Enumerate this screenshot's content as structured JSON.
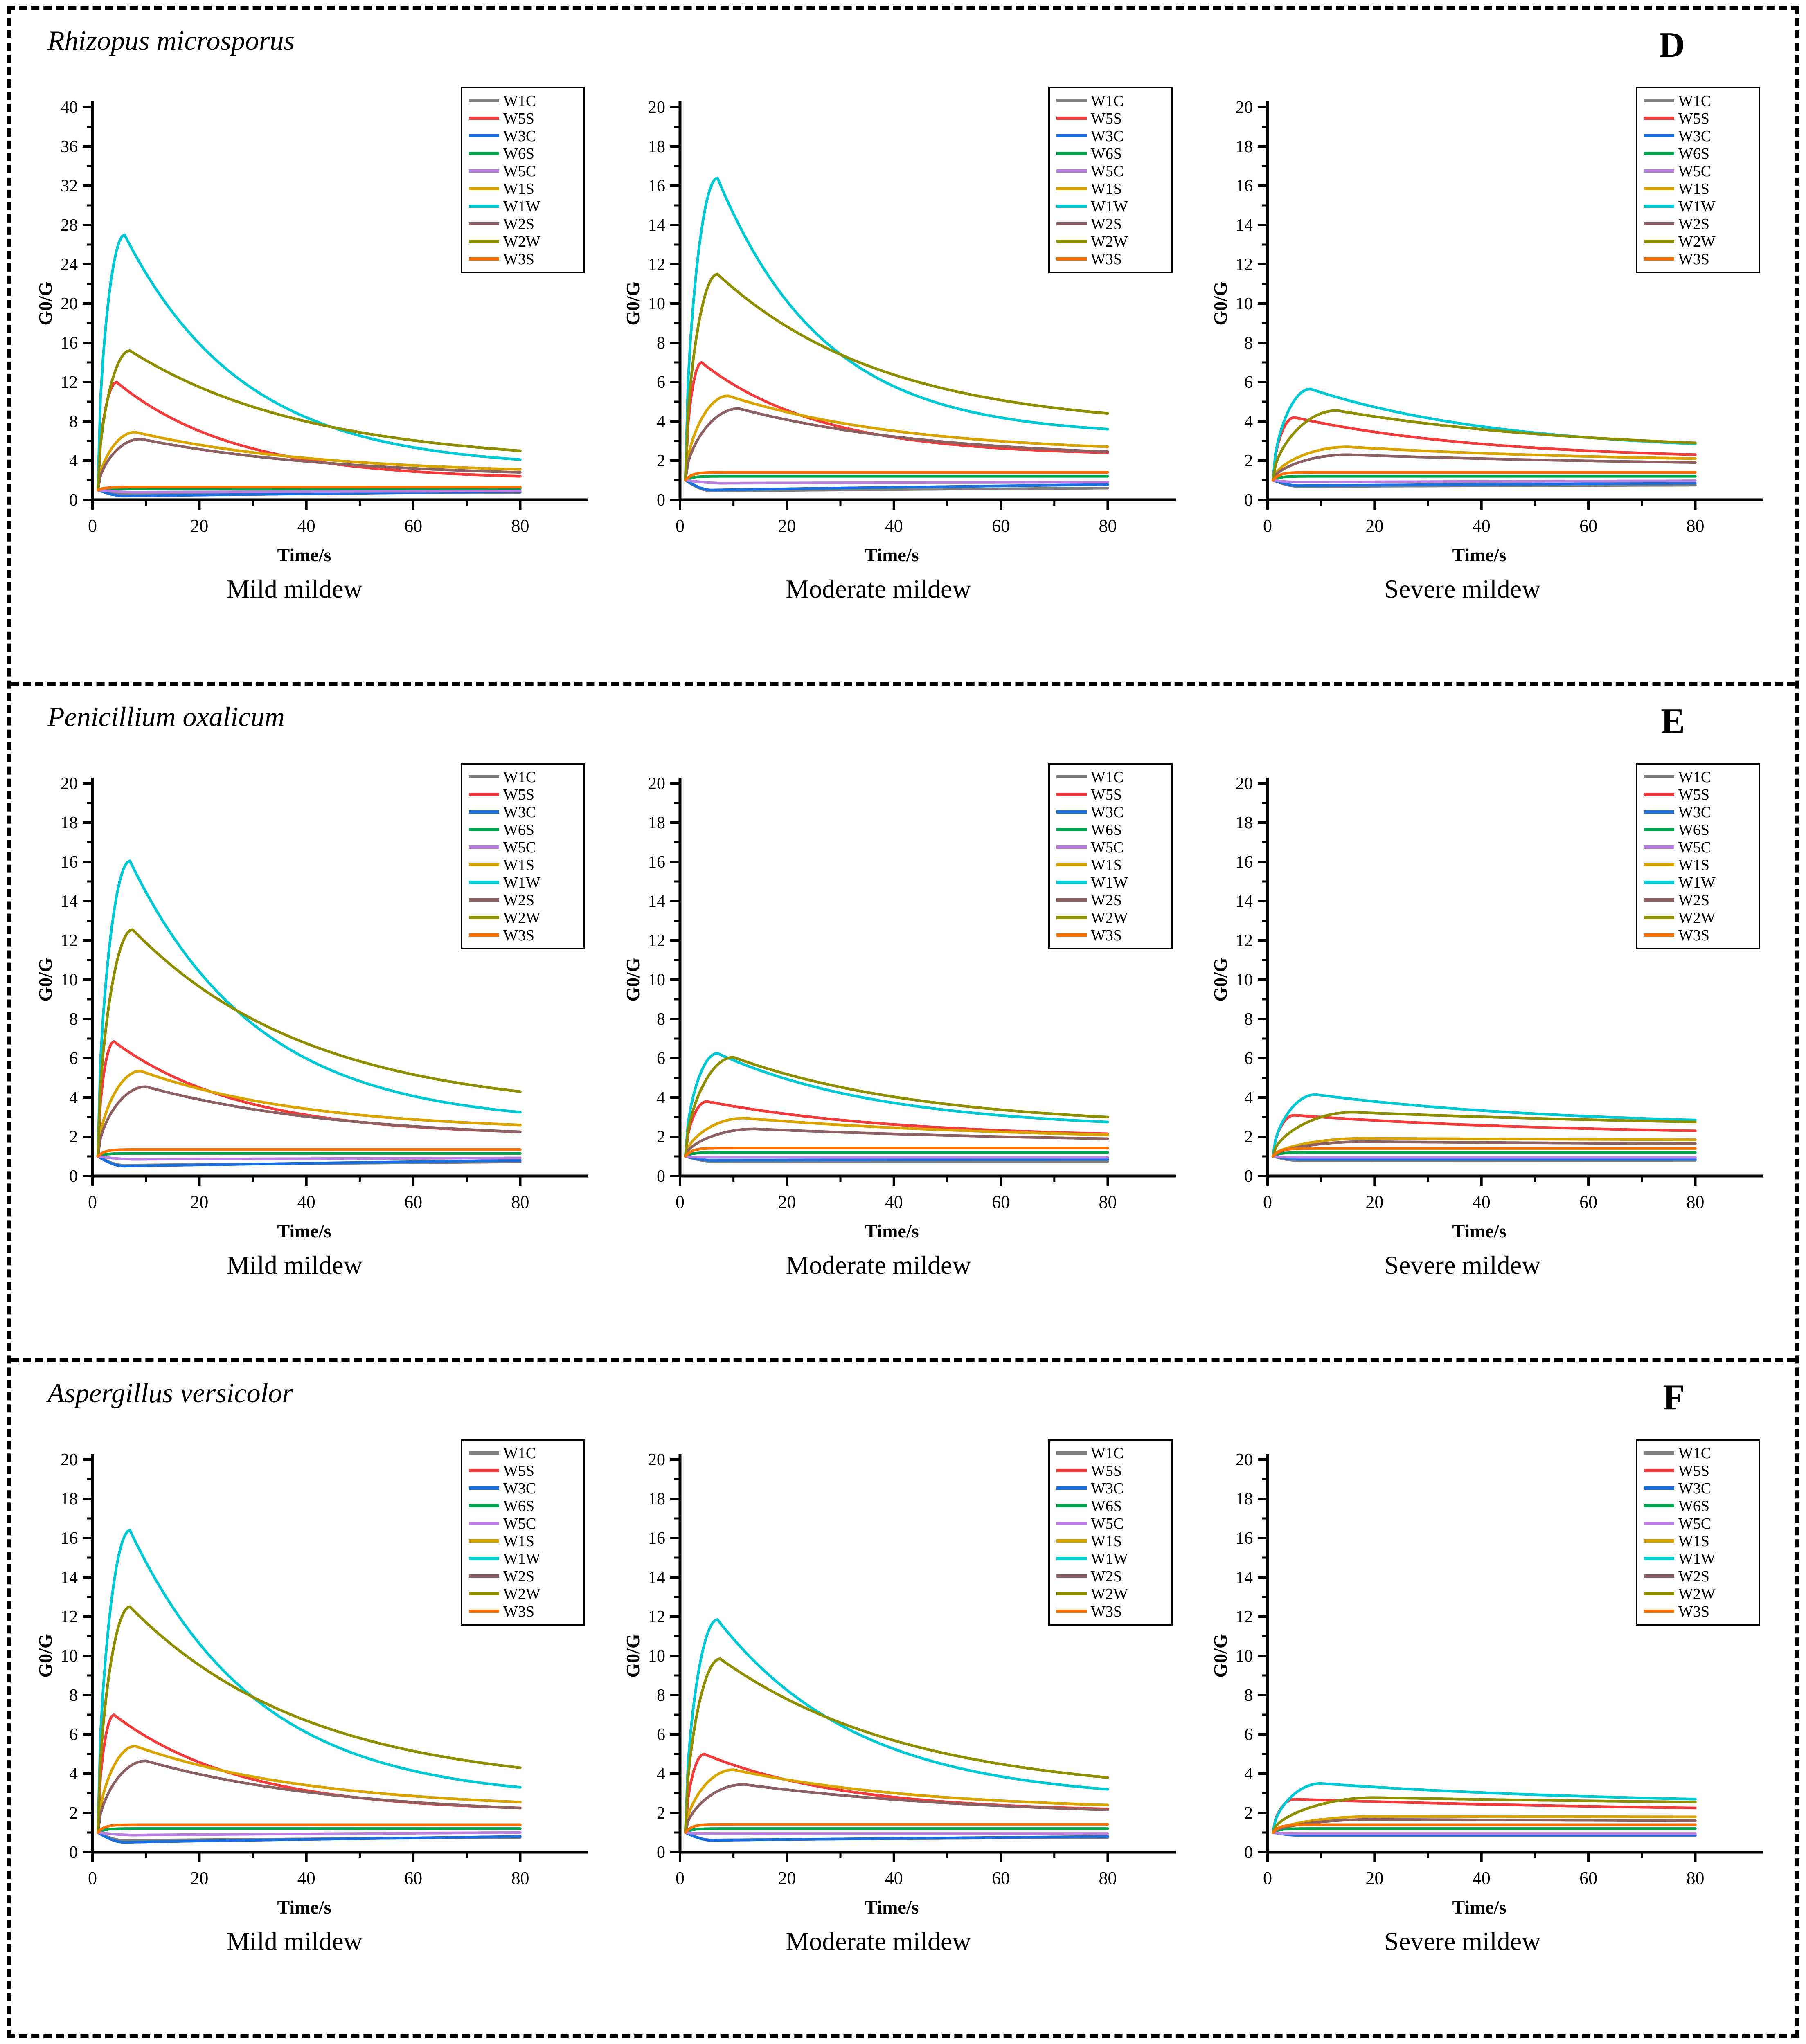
{
  "figure": {
    "rows": [
      {
        "panel": "D",
        "species": "Rhizopus microsporus",
        "captions": [
          "Mild mildew",
          "Moderate mildew",
          "Severe mildew"
        ]
      },
      {
        "panel": "E",
        "species": "Penicillium oxalicum",
        "captions": [
          "Mild mildew",
          "Moderate mildew",
          "Severe mildew"
        ]
      },
      {
        "panel": "F",
        "species": "Aspergillus versicolor",
        "captions": [
          "Mild mildew",
          "Moderate mildew",
          "Severe mildew"
        ]
      }
    ]
  },
  "axis": {
    "xlabel": "Time/s",
    "ylabel": "G0/G",
    "xticks": [
      0,
      20,
      40,
      60,
      80
    ],
    "xminor": [
      10,
      30,
      50,
      70
    ],
    "xmax": 88,
    "tstart": 1,
    "tend": 80
  },
  "legend_order": [
    "W1C",
    "W5S",
    "W3C",
    "W6S",
    "W5C",
    "W1S",
    "W1W",
    "W2S",
    "W2W",
    "W3S"
  ],
  "colors": {
    "W1C": "#7F7F7F",
    "W5S": "#F23B3B",
    "W3C": "#1A6FDF",
    "W6S": "#00A550",
    "W5C": "#B97FE0",
    "W1S": "#D9A300",
    "W1W": "#00C9D4",
    "W2S": "#8D6161",
    "W2W": "#8E8E00",
    "W3S": "#F97100",
    "axis": "#000000"
  },
  "chart_data": [
    {
      "type": "line",
      "row": 0,
      "col": 0,
      "condition": "Mild mildew",
      "ymax": 40,
      "ystep": 4,
      "series": [
        {
          "key": "W1C",
          "type": "dip",
          "dip": 0.62,
          "td": 6,
          "end": 0.75
        },
        {
          "key": "W5S",
          "type": "peak",
          "peak": 12.0,
          "tp": 4.5,
          "end": 2.4,
          "k": 0.045
        },
        {
          "key": "W3C",
          "type": "dip",
          "dip": 0.38,
          "td": 6,
          "end": 0.85
        },
        {
          "key": "W6S",
          "type": "flat",
          "level": 1.12
        },
        {
          "key": "W5C",
          "type": "dip",
          "dip": 0.78,
          "td": 8,
          "end": 0.9
        },
        {
          "key": "W1S",
          "type": "peak",
          "peak": 6.9,
          "tp": 8,
          "end": 3.1,
          "k": 0.03
        },
        {
          "key": "W1W",
          "type": "peak",
          "peak": 27.0,
          "tp": 6,
          "end": 4.1,
          "k": 0.045
        },
        {
          "key": "W2S",
          "type": "peak",
          "peak": 6.2,
          "tp": 9,
          "end": 2.8,
          "k": 0.028
        },
        {
          "key": "W2W",
          "type": "peak",
          "peak": 15.2,
          "tp": 7,
          "end": 5.0,
          "k": 0.03
        },
        {
          "key": "W3S",
          "type": "flat",
          "level": 1.3
        }
      ]
    },
    {
      "type": "line",
      "row": 0,
      "col": 1,
      "condition": "Moderate mildew",
      "ymax": 20,
      "ystep": 2,
      "series": [
        {
          "key": "W1C",
          "type": "dip",
          "dip": 0.45,
          "td": 6,
          "end": 0.6
        },
        {
          "key": "W5S",
          "type": "peak",
          "peak": 7.0,
          "tp": 4,
          "end": 2.4,
          "k": 0.045
        },
        {
          "key": "W3C",
          "type": "dip",
          "dip": 0.5,
          "td": 6,
          "end": 0.78
        },
        {
          "key": "W6S",
          "type": "flat",
          "level": 1.2
        },
        {
          "key": "W5C",
          "type": "dip",
          "dip": 0.85,
          "td": 8,
          "end": 0.9
        },
        {
          "key": "W1S",
          "type": "peak",
          "peak": 5.3,
          "tp": 9,
          "end": 2.7,
          "k": 0.03
        },
        {
          "key": "W1W",
          "type": "peak",
          "peak": 16.4,
          "tp": 7,
          "end": 3.6,
          "k": 0.05
        },
        {
          "key": "W2S",
          "type": "peak",
          "peak": 4.65,
          "tp": 11,
          "end": 2.45,
          "k": 0.028
        },
        {
          "key": "W2W",
          "type": "peak",
          "peak": 11.5,
          "tp": 7,
          "end": 4.4,
          "k": 0.032
        },
        {
          "key": "W3S",
          "type": "flat",
          "level": 1.4
        }
      ]
    },
    {
      "type": "line",
      "row": 0,
      "col": 2,
      "condition": "Severe mildew",
      "ymax": 20,
      "ystep": 2,
      "series": [
        {
          "key": "W1C",
          "type": "dip",
          "dip": 0.68,
          "td": 6,
          "end": 0.75
        },
        {
          "key": "W5S",
          "type": "peak",
          "peak": 4.2,
          "tp": 5,
          "end": 2.3,
          "k": 0.028
        },
        {
          "key": "W3C",
          "type": "dip",
          "dip": 0.72,
          "td": 6,
          "end": 0.85
        },
        {
          "key": "W6S",
          "type": "flat",
          "level": 1.2
        },
        {
          "key": "W5C",
          "type": "dip",
          "dip": 0.9,
          "td": 6,
          "end": 0.97
        },
        {
          "key": "W1S",
          "type": "peak",
          "peak": 2.7,
          "tp": 15,
          "end": 2.1,
          "k": 0.02
        },
        {
          "key": "W1W",
          "type": "peak",
          "peak": 5.65,
          "tp": 8,
          "end": 2.85,
          "k": 0.028
        },
        {
          "key": "W2S",
          "type": "peak",
          "peak": 2.3,
          "tp": 15,
          "end": 1.9,
          "k": 0.015
        },
        {
          "key": "W2W",
          "type": "peak",
          "peak": 4.55,
          "tp": 13,
          "end": 2.9,
          "k": 0.022
        },
        {
          "key": "W3S",
          "type": "flat",
          "level": 1.4
        }
      ]
    },
    {
      "type": "line",
      "row": 1,
      "col": 0,
      "condition": "Mild mildew",
      "ymax": 20,
      "ystep": 2,
      "series": [
        {
          "key": "W1C",
          "type": "dip",
          "dip": 0.55,
          "td": 6,
          "end": 0.72
        },
        {
          "key": "W5S",
          "type": "peak",
          "peak": 6.85,
          "tp": 4,
          "end": 2.25,
          "k": 0.042
        },
        {
          "key": "W3C",
          "type": "dip",
          "dip": 0.5,
          "td": 6,
          "end": 0.8
        },
        {
          "key": "W6S",
          "type": "flat",
          "level": 1.15
        },
        {
          "key": "W5C",
          "type": "dip",
          "dip": 0.85,
          "td": 8,
          "end": 0.92
        },
        {
          "key": "W1S",
          "type": "peak",
          "peak": 5.35,
          "tp": 9,
          "end": 2.6,
          "k": 0.032
        },
        {
          "key": "W1W",
          "type": "peak",
          "peak": 16.05,
          "tp": 7,
          "end": 3.25,
          "k": 0.042
        },
        {
          "key": "W2S",
          "type": "peak",
          "peak": 4.55,
          "tp": 10,
          "end": 2.25,
          "k": 0.028
        },
        {
          "key": "W2W",
          "type": "peak",
          "peak": 12.55,
          "tp": 7.5,
          "end": 4.3,
          "k": 0.03
        },
        {
          "key": "W3S",
          "type": "flat",
          "level": 1.35
        }
      ]
    },
    {
      "type": "line",
      "row": 1,
      "col": 1,
      "condition": "Moderate mildew",
      "ymax": 20,
      "ystep": 2,
      "series": [
        {
          "key": "W1C",
          "type": "dip",
          "dip": 0.75,
          "td": 6,
          "end": 0.75
        },
        {
          "key": "W5S",
          "type": "peak",
          "peak": 3.8,
          "tp": 5,
          "end": 2.15,
          "k": 0.028
        },
        {
          "key": "W3C",
          "type": "dip",
          "dip": 0.8,
          "td": 6,
          "end": 0.85
        },
        {
          "key": "W6S",
          "type": "flat",
          "level": 1.2
        },
        {
          "key": "W5C",
          "type": "flat",
          "level": 0.95
        },
        {
          "key": "W1S",
          "type": "peak",
          "peak": 2.95,
          "tp": 12,
          "end": 2.1,
          "k": 0.02
        },
        {
          "key": "W1W",
          "type": "peak",
          "peak": 6.25,
          "tp": 7,
          "end": 2.75,
          "k": 0.032
        },
        {
          "key": "W2S",
          "type": "peak",
          "peak": 2.4,
          "tp": 14,
          "end": 1.9,
          "k": 0.015
        },
        {
          "key": "W2W",
          "type": "peak",
          "peak": 6.05,
          "tp": 10,
          "end": 3.0,
          "k": 0.028
        },
        {
          "key": "W3S",
          "type": "flat",
          "level": 1.42
        }
      ]
    },
    {
      "type": "line",
      "row": 1,
      "col": 2,
      "condition": "Severe mildew",
      "ymax": 20,
      "ystep": 2,
      "series": [
        {
          "key": "W1C",
          "type": "dip",
          "dip": 0.78,
          "td": 6,
          "end": 0.8
        },
        {
          "key": "W5S",
          "type": "peak",
          "peak": 3.1,
          "tp": 5,
          "end": 2.3,
          "k": 0.02
        },
        {
          "key": "W3C",
          "type": "dip",
          "dip": 0.85,
          "td": 6,
          "end": 0.85
        },
        {
          "key": "W6S",
          "type": "flat",
          "level": 1.2
        },
        {
          "key": "W5C",
          "type": "flat",
          "level": 0.95
        },
        {
          "key": "W1S",
          "type": "peak",
          "peak": 1.92,
          "tp": 18,
          "end": 1.85,
          "k": 0.01
        },
        {
          "key": "W1W",
          "type": "peak",
          "peak": 4.15,
          "tp": 9,
          "end": 2.85,
          "k": 0.022
        },
        {
          "key": "W2S",
          "type": "peak",
          "peak": 1.75,
          "tp": 18,
          "end": 1.65,
          "k": 0.01
        },
        {
          "key": "W2W",
          "type": "peak",
          "peak": 3.25,
          "tp": 16,
          "end": 2.75,
          "k": 0.012
        },
        {
          "key": "W3S",
          "type": "flat",
          "level": 1.4
        }
      ]
    },
    {
      "type": "line",
      "row": 2,
      "col": 0,
      "condition": "Mild mildew",
      "ymax": 20,
      "ystep": 2,
      "series": [
        {
          "key": "W1C",
          "type": "dip",
          "dip": 0.6,
          "td": 6,
          "end": 0.75
        },
        {
          "key": "W5S",
          "type": "peak",
          "peak": 7.0,
          "tp": 4,
          "end": 2.25,
          "k": 0.042
        },
        {
          "key": "W3C",
          "type": "dip",
          "dip": 0.5,
          "td": 6,
          "end": 0.8
        },
        {
          "key": "W6S",
          "type": "flat",
          "level": 1.2
        },
        {
          "key": "W5C",
          "type": "dip",
          "dip": 0.87,
          "td": 8,
          "end": 1.0
        },
        {
          "key": "W1S",
          "type": "peak",
          "peak": 5.4,
          "tp": 8,
          "end": 2.55,
          "k": 0.03
        },
        {
          "key": "W1W",
          "type": "peak",
          "peak": 16.4,
          "tp": 7,
          "end": 3.3,
          "k": 0.042
        },
        {
          "key": "W2S",
          "type": "peak",
          "peak": 4.65,
          "tp": 10,
          "end": 2.25,
          "k": 0.028
        },
        {
          "key": "W2W",
          "type": "peak",
          "peak": 12.5,
          "tp": 7,
          "end": 4.3,
          "k": 0.03
        },
        {
          "key": "W3S",
          "type": "flat",
          "level": 1.4
        }
      ]
    },
    {
      "type": "line",
      "row": 2,
      "col": 1,
      "condition": "Moderate mildew",
      "ymax": 20,
      "ystep": 2,
      "series": [
        {
          "key": "W1C",
          "type": "dip",
          "dip": 0.62,
          "td": 6,
          "end": 0.75
        },
        {
          "key": "W5S",
          "type": "peak",
          "peak": 5.0,
          "tp": 4.5,
          "end": 2.2,
          "k": 0.038
        },
        {
          "key": "W3C",
          "type": "dip",
          "dip": 0.6,
          "td": 6,
          "end": 0.8
        },
        {
          "key": "W6S",
          "type": "flat",
          "level": 1.2
        },
        {
          "key": "W5C",
          "type": "flat",
          "level": 0.95
        },
        {
          "key": "W1S",
          "type": "peak",
          "peak": 4.2,
          "tp": 10,
          "end": 2.4,
          "k": 0.028
        },
        {
          "key": "W1W",
          "type": "peak",
          "peak": 11.85,
          "tp": 7,
          "end": 3.2,
          "k": 0.038
        },
        {
          "key": "W2S",
          "type": "peak",
          "peak": 3.45,
          "tp": 12,
          "end": 2.15,
          "k": 0.022
        },
        {
          "key": "W2W",
          "type": "peak",
          "peak": 9.85,
          "tp": 7.5,
          "end": 3.8,
          "k": 0.028
        },
        {
          "key": "W3S",
          "type": "flat",
          "level": 1.42
        }
      ]
    },
    {
      "type": "line",
      "row": 2,
      "col": 2,
      "condition": "Severe mildew",
      "ymax": 20,
      "ystep": 2,
      "series": [
        {
          "key": "W1C",
          "type": "dip",
          "dip": 0.85,
          "td": 6,
          "end": 0.85
        },
        {
          "key": "W5S",
          "type": "peak",
          "peak": 2.7,
          "tp": 5,
          "end": 2.25,
          "k": 0.012
        },
        {
          "key": "W3C",
          "type": "dip",
          "dip": 0.87,
          "td": 6,
          "end": 0.87
        },
        {
          "key": "W6S",
          "type": "flat",
          "level": 1.2
        },
        {
          "key": "W5C",
          "type": "flat",
          "level": 0.95
        },
        {
          "key": "W1S",
          "type": "peak",
          "peak": 1.82,
          "tp": 20,
          "end": 1.8,
          "k": 0.01
        },
        {
          "key": "W1W",
          "type": "peak",
          "peak": 3.5,
          "tp": 10,
          "end": 2.7,
          "k": 0.018
        },
        {
          "key": "W2S",
          "type": "peak",
          "peak": 1.67,
          "tp": 20,
          "end": 1.6,
          "k": 0.01
        },
        {
          "key": "W2W",
          "type": "peak",
          "peak": 2.78,
          "tp": 20,
          "end": 2.55,
          "k": 0.01
        },
        {
          "key": "W3S",
          "type": "flat",
          "level": 1.4
        }
      ]
    }
  ]
}
